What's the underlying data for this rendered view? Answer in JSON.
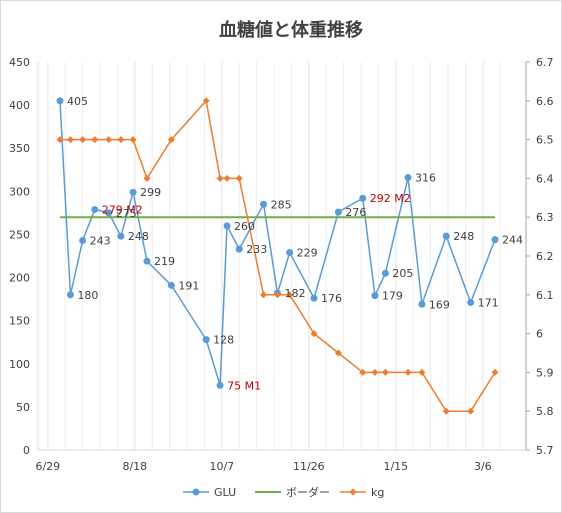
{
  "chart_data": {
    "type": "line",
    "title": "血糖値と体重推移",
    "x_ticks": [
      "6/29",
      "8/18",
      "10/7",
      "11/26",
      "1/15",
      "3/6"
    ],
    "y_left": {
      "min": 0,
      "max": 450,
      "step": 50,
      "ticks": [
        "0",
        "50",
        "100",
        "150",
        "200",
        "250",
        "300",
        "350",
        "400",
        "450"
      ]
    },
    "y_right": {
      "min": 5.7,
      "max": 6.7,
      "step": 0.1,
      "ticks": [
        "5.7",
        "5.8",
        "5.9",
        "6",
        "6.1",
        "6.2",
        "6.3",
        "6.4",
        "6.5",
        "6.6",
        "6.7"
      ]
    },
    "grid": "vertical",
    "legend_position": "bottom",
    "series": [
      {
        "name": "GLU",
        "axis": "left",
        "color": "#5b9bd5",
        "marker": "circle",
        "points": [
          {
            "x": "2017-06-29",
            "y": 405,
            "label": "405"
          },
          {
            "x": "2017-07-05",
            "y": 180,
            "label": "180"
          },
          {
            "x": "2017-07-12",
            "y": 243,
            "label": "243"
          },
          {
            "x": "2017-07-19",
            "y": 279,
            "label": "279 M2",
            "label_color": "#c00000"
          },
          {
            "x": "2017-07-27",
            "y": 275,
            "label": "275"
          },
          {
            "x": "2017-08-03",
            "y": 248,
            "label": "248"
          },
          {
            "x": "2017-08-10",
            "y": 299,
            "label": "299"
          },
          {
            "x": "2017-08-18",
            "y": 219,
            "label": "219"
          },
          {
            "x": "2017-09-01",
            "y": 191,
            "label": "191"
          },
          {
            "x": "2017-09-21",
            "y": 128,
            "label": "128"
          },
          {
            "x": "2017-09-29",
            "y": 75,
            "label": "75 M1",
            "label_color": "#c00000"
          },
          {
            "x": "2017-10-03",
            "y": 260,
            "label": "260"
          },
          {
            "x": "2017-10-10",
            "y": 233,
            "label": "233"
          },
          {
            "x": "2017-10-24",
            "y": 285,
            "label": "285"
          },
          {
            "x": "2017-11-01",
            "y": 182,
            "label": "182"
          },
          {
            "x": "2017-11-08",
            "y": 229,
            "label": "229"
          },
          {
            "x": "2017-11-22",
            "y": 176,
            "label": "176"
          },
          {
            "x": "2017-12-06",
            "y": 276,
            "label": "276"
          },
          {
            "x": "2017-12-20",
            "y": 292,
            "label": "292 M2",
            "label_color": "#c00000"
          },
          {
            "x": "2017-12-27",
            "y": 179,
            "label": "179"
          },
          {
            "x": "2018-01-02",
            "y": 205,
            "label": "205"
          },
          {
            "x": "2018-01-15",
            "y": 316,
            "label": "316"
          },
          {
            "x": "2018-01-23",
            "y": 169,
            "label": "169"
          },
          {
            "x": "2018-02-06",
            "y": 248,
            "label": "248"
          },
          {
            "x": "2018-02-20",
            "y": 171,
            "label": "171"
          },
          {
            "x": "2018-03-06",
            "y": 244,
            "label": "244"
          }
        ]
      },
      {
        "name": "ボーダー",
        "axis": "left",
        "color": "#70ad47",
        "marker": "none",
        "points": [
          {
            "x": "2017-06-29",
            "y": 270
          },
          {
            "x": "2018-03-06",
            "y": 270
          }
        ]
      },
      {
        "name": "kg",
        "axis": "right",
        "color": "#ed7d31",
        "marker": "diamond",
        "points": [
          {
            "x": "2017-06-29",
            "y": 6.5
          },
          {
            "x": "2017-07-05",
            "y": 6.5
          },
          {
            "x": "2017-07-12",
            "y": 6.5
          },
          {
            "x": "2017-07-19",
            "y": 6.5
          },
          {
            "x": "2017-07-27",
            "y": 6.5
          },
          {
            "x": "2017-08-03",
            "y": 6.5
          },
          {
            "x": "2017-08-10",
            "y": 6.5
          },
          {
            "x": "2017-08-18",
            "y": 6.4
          },
          {
            "x": "2017-09-01",
            "y": 6.5
          },
          {
            "x": "2017-09-21",
            "y": 6.6
          },
          {
            "x": "2017-09-29",
            "y": 6.4
          },
          {
            "x": "2017-10-03",
            "y": 6.4
          },
          {
            "x": "2017-10-10",
            "y": 6.4
          },
          {
            "x": "2017-10-24",
            "y": 6.1
          },
          {
            "x": "2017-11-01",
            "y": 6.1
          },
          {
            "x": "2017-11-08",
            "y": 6.1
          },
          {
            "x": "2017-11-22",
            "y": 6.0
          },
          {
            "x": "2017-12-06",
            "y": 5.95
          },
          {
            "x": "2017-12-20",
            "y": 5.9
          },
          {
            "x": "2017-12-27",
            "y": 5.9
          },
          {
            "x": "2018-01-02",
            "y": 5.9
          },
          {
            "x": "2018-01-15",
            "y": 5.9
          },
          {
            "x": "2018-01-23",
            "y": 5.9
          },
          {
            "x": "2018-02-06",
            "y": 5.8
          },
          {
            "x": "2018-02-20",
            "y": 5.8
          },
          {
            "x": "2018-03-06",
            "y": 5.9
          }
        ]
      }
    ]
  }
}
